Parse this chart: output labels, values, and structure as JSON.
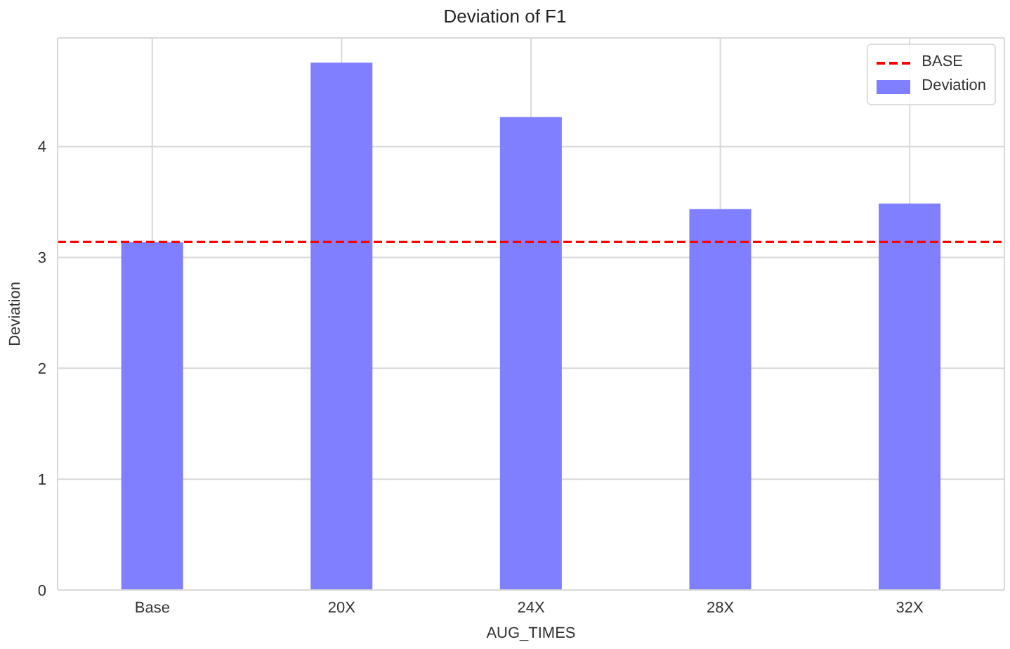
{
  "chart_data": {
    "type": "bar",
    "title": "Deviation of F1",
    "xlabel": "AUG_TIMES",
    "ylabel": "Deviation",
    "categories": [
      "Base",
      "20X",
      "24X",
      "28X",
      "32X"
    ],
    "series": [
      {
        "name": "Deviation",
        "color": "#7f7fff",
        "values": [
          3.13,
          4.75,
          4.26,
          3.43,
          3.48
        ]
      }
    ],
    "ylim": [
      0,
      4.98
    ],
    "yticks": [
      0,
      1,
      2,
      3,
      4
    ],
    "ref_lines": [
      {
        "axis": "y",
        "value": 3.14,
        "label": "BASE",
        "color": "#ff0000",
        "line_style": "dashed"
      }
    ],
    "grid": true,
    "legend": "top right"
  }
}
